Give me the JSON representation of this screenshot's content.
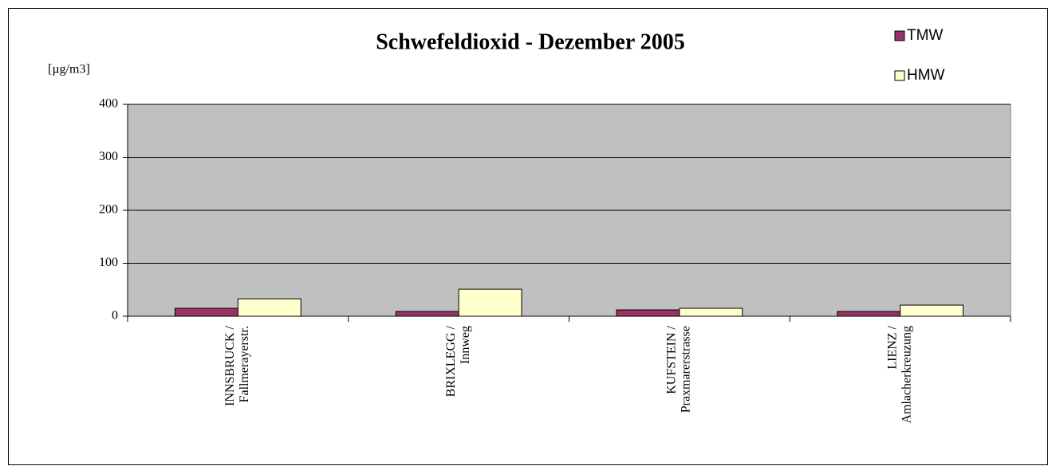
{
  "chart_data": {
    "type": "bar",
    "title": "Schwefeldioxid - Dezember 2005",
    "y_label": "[µg/m3]",
    "categories": [
      [
        "INNSBRUCK /",
        "Fallmerayerstr."
      ],
      [
        "BRIXLEGG /",
        "Innweg"
      ],
      [
        "KUFSTEIN /",
        "Praxmarerstrasse"
      ],
      [
        "LIENZ /",
        "Amlacherkreuzung"
      ]
    ],
    "series": [
      {
        "name": "TMW",
        "color": "#993366",
        "values": [
          15,
          9,
          12,
          9
        ]
      },
      {
        "name": "HMW",
        "color": "#ffffcc",
        "values": [
          33,
          51,
          15,
          21
        ]
      }
    ],
    "ylim": [
      0,
      400
    ],
    "yticks": [
      0,
      100,
      200,
      300,
      400
    ],
    "grid": true,
    "legend": "top-right"
  }
}
